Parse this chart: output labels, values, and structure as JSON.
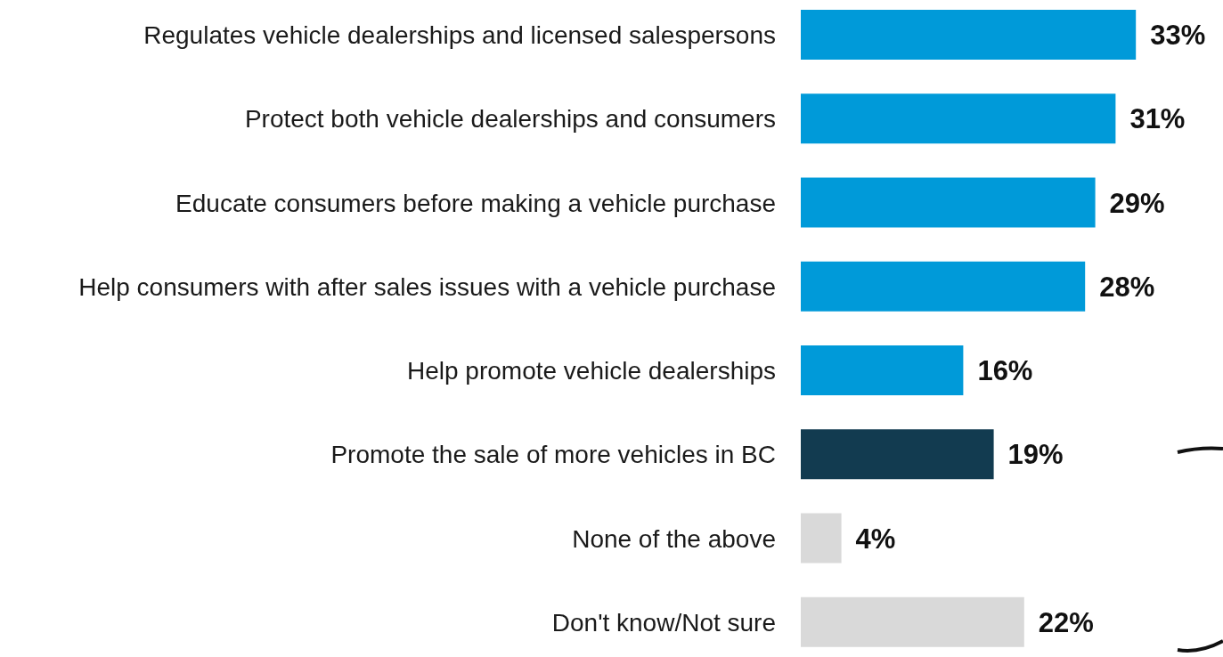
{
  "chart_data": {
    "type": "bar",
    "orientation": "horizontal",
    "categories": [
      "Regulates vehicle dealerships and licensed salespersons",
      "Protect both vehicle dealerships and consumers",
      "Educate consumers before making a vehicle purchase",
      "Help consumers with after sales issues with a vehicle purchase",
      "Help promote vehicle dealerships",
      "Promote the sale of more vehicles in BC",
      "None of the above",
      "Don't know/Not sure"
    ],
    "values": [
      33,
      31,
      29,
      28,
      16,
      19,
      4,
      22
    ],
    "colors": [
      "#009ad9",
      "#009ad9",
      "#009ad9",
      "#009ad9",
      "#009ad9",
      "#123b50",
      "#d9d9d9",
      "#d9d9d9"
    ],
    "value_labels": [
      "33%",
      "31%",
      "29%",
      "28%",
      "16%",
      "19%",
      "4%",
      "22%"
    ],
    "tick_labels": "y",
    "grid": false
  }
}
